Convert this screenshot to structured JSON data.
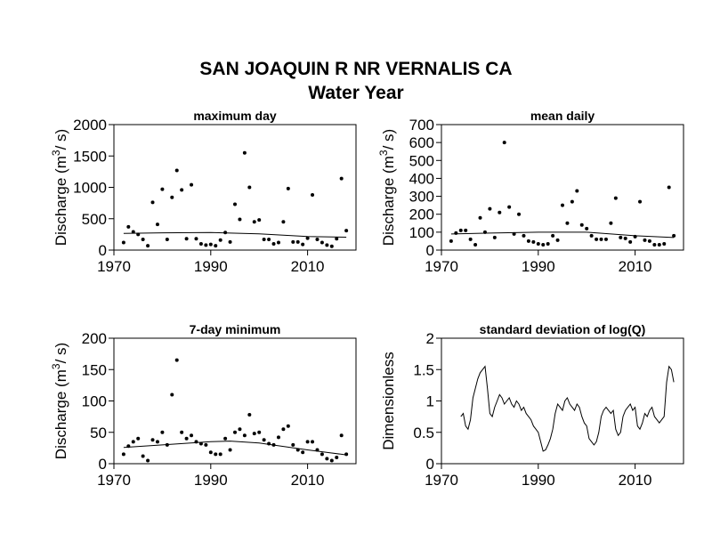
{
  "figure": {
    "title_line1": "SAN JOAQUIN R NR VERNALIS CA",
    "title_line2": "Water Year"
  },
  "chart_data": [
    {
      "id": "p1",
      "type": "scatter",
      "title": "maximum day",
      "ylabel": "Discharge (m3/s)",
      "xlim": [
        1970,
        2020
      ],
      "ylim": [
        0,
        2000
      ],
      "xticks": [
        1970,
        1990,
        2010
      ],
      "yticks": [
        0,
        500,
        1000,
        1500,
        2000
      ],
      "points": {
        "x": [
          1972,
          1973,
          1974,
          1975,
          1976,
          1977,
          1978,
          1979,
          1980,
          1981,
          1982,
          1983,
          1984,
          1985,
          1986,
          1987,
          1988,
          1989,
          1990,
          1991,
          1992,
          1993,
          1994,
          1995,
          1996,
          1997,
          1998,
          1999,
          2000,
          2001,
          2002,
          2003,
          2004,
          2005,
          2006,
          2007,
          2008,
          2009,
          2010,
          2011,
          2012,
          2013,
          2014,
          2015,
          2016,
          2017,
          2018
        ],
        "y": [
          120,
          370,
          290,
          250,
          170,
          70,
          760,
          410,
          970,
          170,
          840,
          1270,
          960,
          180,
          1040,
          180,
          100,
          80,
          90,
          70,
          160,
          280,
          130,
          730,
          490,
          1550,
          1000,
          450,
          480,
          170,
          170,
          100,
          120,
          450,
          980,
          130,
          130,
          90,
          190,
          880,
          170,
          120,
          80,
          60,
          180,
          1140,
          310
        ]
      },
      "trend": {
        "x": [
          1972,
          1980,
          1990,
          2000,
          2010,
          2018
        ],
        "y": [
          265,
          275,
          280,
          260,
          215,
          205
        ]
      }
    },
    {
      "id": "p2",
      "type": "scatter",
      "title": "mean daily",
      "ylabel": "Discharge (m3/s)",
      "xlim": [
        1970,
        2020
      ],
      "ylim": [
        0,
        700
      ],
      "xticks": [
        1970,
        1990,
        2010
      ],
      "yticks": [
        0,
        100,
        200,
        300,
        400,
        500,
        600,
        700
      ],
      "points": {
        "x": [
          1972,
          1973,
          1974,
          1975,
          1976,
          1977,
          1978,
          1979,
          1980,
          1981,
          1982,
          1983,
          1984,
          1985,
          1986,
          1987,
          1988,
          1989,
          1990,
          1991,
          1992,
          1993,
          1994,
          1995,
          1996,
          1997,
          1998,
          1999,
          2000,
          2001,
          2002,
          2003,
          2004,
          2005,
          2006,
          2007,
          2008,
          2009,
          2010,
          2011,
          2012,
          2013,
          2014,
          2015,
          2016,
          2017,
          2018
        ],
        "y": [
          50,
          95,
          110,
          110,
          60,
          30,
          180,
          100,
          230,
          70,
          210,
          600,
          240,
          90,
          200,
          80,
          50,
          45,
          35,
          30,
          35,
          80,
          55,
          250,
          150,
          270,
          330,
          140,
          120,
          80,
          60,
          60,
          60,
          150,
          290,
          70,
          65,
          45,
          75,
          270,
          55,
          50,
          30,
          30,
          35,
          350,
          80
        ]
      },
      "trend": {
        "x": [
          1972,
          1980,
          1990,
          2000,
          2010,
          2018
        ],
        "y": [
          90,
          95,
          100,
          100,
          80,
          70
        ]
      }
    },
    {
      "id": "p3",
      "type": "scatter",
      "title": "7-day minimum",
      "ylabel": "Discharge (m3/s)",
      "xlim": [
        1970,
        2020
      ],
      "ylim": [
        0,
        200
      ],
      "xticks": [
        1970,
        1990,
        2010
      ],
      "yticks": [
        0,
        50,
        100,
        150,
        200
      ],
      "points": {
        "x": [
          1972,
          1973,
          1974,
          1975,
          1976,
          1977,
          1978,
          1979,
          1980,
          1981,
          1982,
          1983,
          1984,
          1985,
          1986,
          1987,
          1988,
          1989,
          1990,
          1991,
          1992,
          1993,
          1994,
          1995,
          1996,
          1997,
          1998,
          1999,
          2000,
          2001,
          2002,
          2003,
          2004,
          2005,
          2006,
          2007,
          2008,
          2009,
          2010,
          2011,
          2012,
          2013,
          2014,
          2015,
          2016,
          2017,
          2018
        ],
        "y": [
          15,
          28,
          35,
          40,
          12,
          5,
          38,
          35,
          50,
          30,
          110,
          165,
          50,
          40,
          45,
          35,
          32,
          30,
          18,
          15,
          15,
          40,
          22,
          50,
          55,
          45,
          78,
          48,
          50,
          38,
          32,
          30,
          42,
          55,
          60,
          30,
          22,
          18,
          35,
          35,
          22,
          15,
          8,
          5,
          10,
          45,
          15
        ]
      },
      "trend": {
        "x": [
          1972,
          1980,
          1990,
          1994,
          2000,
          2010,
          2018
        ],
        "y": [
          26,
          30,
          35,
          36,
          33,
          22,
          14
        ]
      }
    },
    {
      "id": "p4",
      "type": "line",
      "title": "standard deviation of log(Q)",
      "ylabel": "Dimensionless",
      "xlim": [
        1970,
        2020
      ],
      "ylim": [
        0,
        2
      ],
      "xticks": [
        1970,
        1990,
        2010
      ],
      "yticks": [
        0,
        0.5,
        1,
        1.5,
        2
      ],
      "series": {
        "x": [
          1974,
          1974.5,
          1975,
          1975.5,
          1976,
          1976.5,
          1977,
          1977.5,
          1978,
          1978.5,
          1979,
          1979.5,
          1980,
          1980.5,
          1981,
          1981.5,
          1982,
          1982.5,
          1983,
          1983.5,
          1984,
          1984.5,
          1985,
          1985.5,
          1986,
          1986.5,
          1987,
          1987.5,
          1988,
          1988.5,
          1989,
          1989.5,
          1990,
          1990.5,
          1991,
          1991.5,
          1992,
          1992.5,
          1993,
          1993.5,
          1994,
          1994.5,
          1995,
          1995.5,
          1996,
          1996.5,
          1997,
          1997.5,
          1998,
          1998.5,
          1999,
          1999.5,
          2000,
          2000.5,
          2001,
          2001.5,
          2002,
          2002.5,
          2003,
          2003.5,
          2004,
          2004.5,
          2005,
          2005.5,
          2006,
          2006.5,
          2007,
          2007.5,
          2008,
          2008.5,
          2009,
          2009.5,
          2010,
          2010.5,
          2011,
          2011.5,
          2012,
          2012.5,
          2013,
          2013.5,
          2014,
          2014.5,
          2015,
          2015.5,
          2016,
          2016.5,
          2017,
          2017.5,
          2018
        ],
        "y": [
          0.75,
          0.8,
          0.6,
          0.55,
          0.7,
          1.05,
          1.2,
          1.35,
          1.45,
          1.5,
          1.55,
          1.2,
          0.8,
          0.75,
          0.9,
          1.0,
          1.1,
          1.05,
          0.95,
          1.0,
          1.05,
          0.95,
          0.9,
          1.0,
          0.95,
          0.85,
          0.9,
          0.8,
          0.75,
          0.7,
          0.6,
          0.55,
          0.5,
          0.35,
          0.2,
          0.22,
          0.3,
          0.4,
          0.55,
          0.8,
          0.95,
          0.9,
          0.85,
          1.0,
          1.05,
          0.95,
          0.9,
          0.85,
          0.95,
          0.9,
          0.75,
          0.65,
          0.6,
          0.4,
          0.35,
          0.3,
          0.35,
          0.5,
          0.75,
          0.85,
          0.9,
          0.85,
          0.8,
          0.85,
          0.55,
          0.45,
          0.5,
          0.75,
          0.85,
          0.9,
          0.95,
          0.85,
          0.9,
          0.6,
          0.55,
          0.65,
          0.8,
          0.75,
          0.85,
          0.9,
          0.75,
          0.7,
          0.65,
          0.7,
          0.75,
          1.3,
          1.55,
          1.5,
          1.3
        ]
      }
    }
  ]
}
